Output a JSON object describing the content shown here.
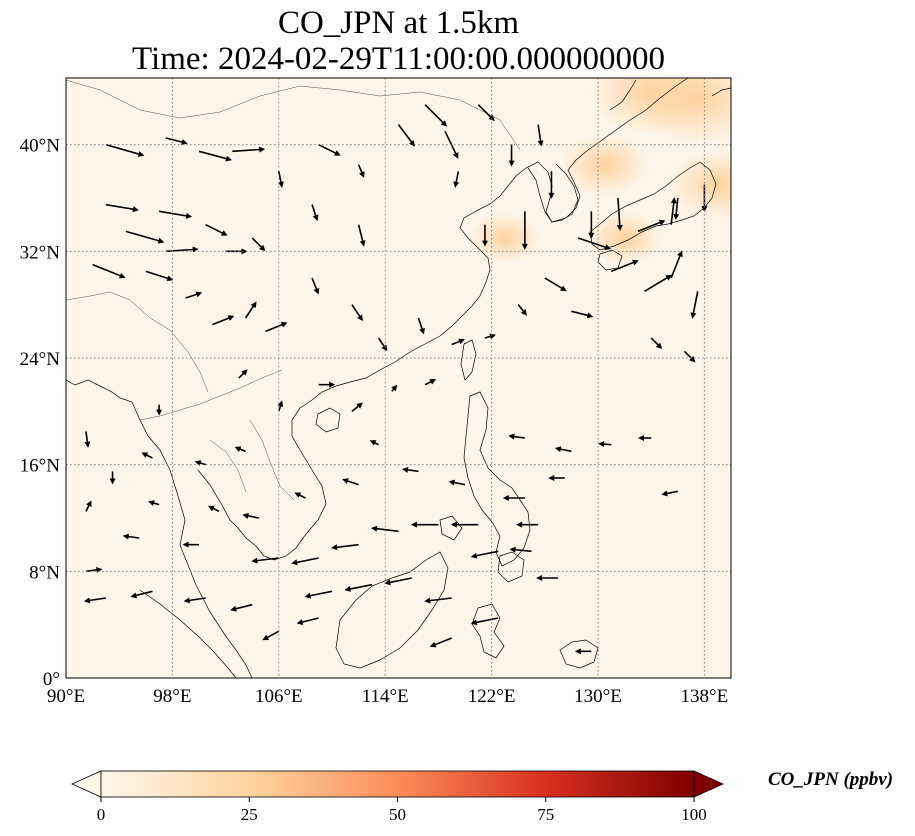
{
  "title": {
    "line1": "CO_JPN at 1.5km",
    "line2": "Time: 2024-02-29T11:00:00.000000000"
  },
  "map": {
    "lon_range": [
      90,
      140
    ],
    "lat_range": [
      0,
      45
    ],
    "lon_ticks": [
      90,
      98,
      106,
      114,
      122,
      130,
      138
    ],
    "lon_tick_labels": [
      "90°E",
      "98°E",
      "106°E",
      "114°E",
      "122°E",
      "130°E",
      "138°E"
    ],
    "lat_ticks": [
      0,
      8,
      16,
      24,
      32,
      40
    ],
    "lat_tick_labels": [
      "0°",
      "8°N",
      "16°N",
      "24°N",
      "32°N",
      "40°N"
    ],
    "gridlines": "dotted",
    "background_color": "#fff5e9",
    "coastline_color": "#000000"
  },
  "colorbar": {
    "label": "CO_JPN (ppbv)",
    "min": 0,
    "max": 100,
    "ticks": [
      0,
      25,
      50,
      75,
      100
    ],
    "tick_labels": [
      "0",
      "25",
      "50",
      "75",
      "100"
    ],
    "extend": "both",
    "colormap": "OrRd",
    "colors": [
      "#fff7ec",
      "#fdd49e",
      "#fc8d59",
      "#d7301f",
      "#7f0000"
    ]
  },
  "concentration_highlights": [
    {
      "lon": 130.5,
      "lat": 38.5,
      "value": 12
    },
    {
      "lon": 139.0,
      "lat": 37.0,
      "value": 14
    },
    {
      "lon": 134.0,
      "lat": 44.0,
      "value": 20
    },
    {
      "lon": 137.5,
      "lat": 43.5,
      "value": 22
    },
    {
      "lon": 123.0,
      "lat": 33.0,
      "value": 8
    },
    {
      "lon": 132.0,
      "lat": 33.0,
      "value": 9
    }
  ],
  "wind_vectors": [
    {
      "lon": 93.0,
      "lat": 40.0,
      "u": 3.5,
      "v": -1.0
    },
    {
      "lon": 97.5,
      "lat": 40.5,
      "u": 2.0,
      "v": -0.5
    },
    {
      "lon": 100.0,
      "lat": 39.5,
      "u": 3.0,
      "v": -0.8
    },
    {
      "lon": 102.5,
      "lat": 39.5,
      "u": 3.0,
      "v": 0.2
    },
    {
      "lon": 106.0,
      "lat": 38.0,
      "u": 0.3,
      "v": -1.5
    },
    {
      "lon": 109.0,
      "lat": 40.0,
      "u": 2.0,
      "v": -1.0
    },
    {
      "lon": 112.0,
      "lat": 38.5,
      "u": 0.5,
      "v": -1.2
    },
    {
      "lon": 115.0,
      "lat": 41.5,
      "u": 1.5,
      "v": -2.0
    },
    {
      "lon": 117.0,
      "lat": 43.0,
      "u": 2.0,
      "v": -2.0
    },
    {
      "lon": 118.5,
      "lat": 41.0,
      "u": 1.2,
      "v": -2.5
    },
    {
      "lon": 121.0,
      "lat": 43.0,
      "u": 1.5,
      "v": -1.5
    },
    {
      "lon": 93.0,
      "lat": 35.5,
      "u": 3.0,
      "v": -0.5
    },
    {
      "lon": 97.0,
      "lat": 35.0,
      "u": 3.0,
      "v": -0.5
    },
    {
      "lon": 100.5,
      "lat": 34.0,
      "u": 2.0,
      "v": -1.0
    },
    {
      "lon": 94.5,
      "lat": 33.5,
      "u": 3.5,
      "v": -1.0
    },
    {
      "lon": 97.5,
      "lat": 32.0,
      "u": 3.0,
      "v": 0.2
    },
    {
      "lon": 102.0,
      "lat": 32.0,
      "u": 2.0,
      "v": 0.0
    },
    {
      "lon": 104.0,
      "lat": 33.0,
      "u": 1.2,
      "v": -1.2
    },
    {
      "lon": 108.5,
      "lat": 35.5,
      "u": 0.5,
      "v": -1.5
    },
    {
      "lon": 112.0,
      "lat": 34.0,
      "u": 0.5,
      "v": -2.0
    },
    {
      "lon": 92.0,
      "lat": 31.0,
      "u": 3.0,
      "v": -1.2
    },
    {
      "lon": 96.0,
      "lat": 30.5,
      "u": 2.5,
      "v": -0.8
    },
    {
      "lon": 99.0,
      "lat": 28.5,
      "u": 1.5,
      "v": 0.5
    },
    {
      "lon": 101.0,
      "lat": 26.5,
      "u": 2.0,
      "v": 0.8
    },
    {
      "lon": 103.5,
      "lat": 27.0,
      "u": 1.0,
      "v": 1.5
    },
    {
      "lon": 105.0,
      "lat": 26.0,
      "u": 2.0,
      "v": 0.8
    },
    {
      "lon": 108.5,
      "lat": 30.0,
      "u": 0.6,
      "v": -1.5
    },
    {
      "lon": 111.5,
      "lat": 28.0,
      "u": 1.0,
      "v": -1.5
    },
    {
      "lon": 113.5,
      "lat": 25.5,
      "u": 0.8,
      "v": -1.2
    },
    {
      "lon": 116.5,
      "lat": 27.0,
      "u": 0.5,
      "v": -1.5
    },
    {
      "lon": 119.0,
      "lat": 25.0,
      "u": 1.2,
      "v": 0.5
    },
    {
      "lon": 121.5,
      "lat": 25.5,
      "u": 1.0,
      "v": 0.3
    },
    {
      "lon": 124.0,
      "lat": 28.0,
      "u": 0.8,
      "v": -1.0
    },
    {
      "lon": 126.0,
      "lat": 30.0,
      "u": 2.0,
      "v": -1.2
    },
    {
      "lon": 128.0,
      "lat": 27.5,
      "u": 2.0,
      "v": -0.5
    },
    {
      "lon": 131.0,
      "lat": 30.5,
      "u": 2.5,
      "v": 1.0
    },
    {
      "lon": 133.5,
      "lat": 29.0,
      "u": 2.5,
      "v": 1.5
    },
    {
      "lon": 135.5,
      "lat": 30.0,
      "u": 1.0,
      "v": 2.5
    },
    {
      "lon": 137.5,
      "lat": 29.0,
      "u": -0.5,
      "v": -2.5
    },
    {
      "lon": 128.5,
      "lat": 33.0,
      "u": 3.0,
      "v": -1.0
    },
    {
      "lon": 129.5,
      "lat": 35.0,
      "u": 0.0,
      "v": -2.5
    },
    {
      "lon": 131.5,
      "lat": 36.0,
      "u": 0.2,
      "v": -3.0
    },
    {
      "lon": 133.0,
      "lat": 33.5,
      "u": 2.5,
      "v": 1.0
    },
    {
      "lon": 135.5,
      "lat": 34.0,
      "u": 0.3,
      "v": 2.5
    },
    {
      "lon": 136.0,
      "lat": 36.0,
      "u": -0.2,
      "v": -2.0
    },
    {
      "lon": 138.0,
      "lat": 37.0,
      "u": 0.0,
      "v": -2.5
    },
    {
      "lon": 126.5,
      "lat": 38.0,
      "u": 0.0,
      "v": -2.5
    },
    {
      "lon": 124.5,
      "lat": 35.0,
      "u": 0.0,
      "v": -3.5
    },
    {
      "lon": 121.5,
      "lat": 34.0,
      "u": 0.0,
      "v": -2.0
    },
    {
      "lon": 119.5,
      "lat": 38.0,
      "u": -0.3,
      "v": -1.5
    },
    {
      "lon": 123.5,
      "lat": 40.0,
      "u": 0.0,
      "v": -2.0
    },
    {
      "lon": 125.5,
      "lat": 41.5,
      "u": 0.3,
      "v": -2.0
    },
    {
      "lon": 134.0,
      "lat": 25.5,
      "u": 1.0,
      "v": -1.0
    },
    {
      "lon": 136.5,
      "lat": 24.5,
      "u": 1.0,
      "v": -1.0
    },
    {
      "lon": 103.0,
      "lat": 22.5,
      "u": 0.8,
      "v": 0.8
    },
    {
      "lon": 106.0,
      "lat": 20.0,
      "u": 0.3,
      "v": 1.0
    },
    {
      "lon": 109.0,
      "lat": 22.0,
      "u": 1.5,
      "v": 0.0
    },
    {
      "lon": 111.5,
      "lat": 20.0,
      "u": 1.0,
      "v": 0.8
    },
    {
      "lon": 114.5,
      "lat": 21.5,
      "u": 0.5,
      "v": 0.6
    },
    {
      "lon": 117.0,
      "lat": 22.0,
      "u": 1.0,
      "v": 0.5
    },
    {
      "lon": 124.5,
      "lat": 18.0,
      "u": -1.5,
      "v": 0.2
    },
    {
      "lon": 128.0,
      "lat": 17.0,
      "u": -1.5,
      "v": 0.3
    },
    {
      "lon": 131.0,
      "lat": 17.5,
      "u": -1.2,
      "v": 0.1
    },
    {
      "lon": 134.0,
      "lat": 18.0,
      "u": -1.2,
      "v": 0.0
    },
    {
      "lon": 136.0,
      "lat": 14.0,
      "u": -1.5,
      "v": -0.3
    },
    {
      "lon": 127.5,
      "lat": 15.0,
      "u": -1.5,
      "v": 0.0
    },
    {
      "lon": 124.5,
      "lat": 13.5,
      "u": -2.0,
      "v": 0.0
    },
    {
      "lon": 121.0,
      "lat": 11.5,
      "u": -2.5,
      "v": 0.0
    },
    {
      "lon": 125.5,
      "lat": 11.5,
      "u": -2.0,
      "v": 0.0
    },
    {
      "lon": 118.0,
      "lat": 11.5,
      "u": -2.5,
      "v": 0.0
    },
    {
      "lon": 115.0,
      "lat": 11.0,
      "u": -2.5,
      "v": 0.3
    },
    {
      "lon": 112.0,
      "lat": 10.0,
      "u": -2.5,
      "v": -0.3
    },
    {
      "lon": 109.0,
      "lat": 9.0,
      "u": -2.5,
      "v": -0.5
    },
    {
      "lon": 106.0,
      "lat": 9.0,
      "u": -2.5,
      "v": -0.3
    },
    {
      "lon": 122.5,
      "lat": 9.5,
      "u": -2.5,
      "v": -0.5
    },
    {
      "lon": 125.0,
      "lat": 9.5,
      "u": -2.0,
      "v": 0.2
    },
    {
      "lon": 127.0,
      "lat": 7.5,
      "u": -2.0,
      "v": 0.0
    },
    {
      "lon": 116.0,
      "lat": 7.5,
      "u": -2.5,
      "v": -0.5
    },
    {
      "lon": 113.0,
      "lat": 7.0,
      "u": -2.5,
      "v": -0.5
    },
    {
      "lon": 110.0,
      "lat": 6.5,
      "u": -2.5,
      "v": -0.5
    },
    {
      "lon": 119.0,
      "lat": 6.0,
      "u": -2.5,
      "v": -0.3
    },
    {
      "lon": 122.5,
      "lat": 4.5,
      "u": -2.5,
      "v": -0.5
    },
    {
      "lon": 119.0,
      "lat": 3.0,
      "u": -2.0,
      "v": -0.8
    },
    {
      "lon": 104.0,
      "lat": 5.5,
      "u": -2.0,
      "v": -0.5
    },
    {
      "lon": 100.5,
      "lat": 6.0,
      "u": -2.0,
      "v": -0.3
    },
    {
      "lon": 96.5,
      "lat": 6.5,
      "u": -2.0,
      "v": -0.5
    },
    {
      "lon": 93.0,
      "lat": 6.0,
      "u": -2.0,
      "v": -0.3
    },
    {
      "lon": 91.5,
      "lat": 8.0,
      "u": 1.5,
      "v": 0.2
    },
    {
      "lon": 100.0,
      "lat": 10.0,
      "u": -1.5,
      "v": 0.0
    },
    {
      "lon": 95.5,
      "lat": 10.5,
      "u": -1.5,
      "v": 0.2
    },
    {
      "lon": 91.5,
      "lat": 12.5,
      "u": 0.5,
      "v": 1.0
    },
    {
      "lon": 109.0,
      "lat": 4.5,
      "u": -2.0,
      "v": -0.5
    },
    {
      "lon": 106.0,
      "lat": 3.5,
      "u": -1.5,
      "v": -0.8
    },
    {
      "lon": 129.5,
      "lat": 2.0,
      "u": -1.5,
      "v": 0.0
    },
    {
      "lon": 116.5,
      "lat": 15.5,
      "u": -1.5,
      "v": 0.2
    },
    {
      "lon": 112.0,
      "lat": 14.5,
      "u": -1.5,
      "v": 0.5
    },
    {
      "lon": 108.0,
      "lat": 13.5,
      "u": -1.0,
      "v": 0.5
    },
    {
      "lon": 120.0,
      "lat": 14.5,
      "u": -1.5,
      "v": 0.3
    },
    {
      "lon": 97.0,
      "lat": 20.5,
      "u": 0.0,
      "v": -1.0
    },
    {
      "lon": 91.5,
      "lat": 18.5,
      "u": 0.2,
      "v": -1.5
    },
    {
      "lon": 93.5,
      "lat": 15.5,
      "u": 0.0,
      "v": -1.2
    },
    {
      "lon": 96.5,
      "lat": 16.5,
      "u": -1.0,
      "v": 0.5
    },
    {
      "lon": 100.5,
      "lat": 16.0,
      "u": -1.0,
      "v": 0.3
    },
    {
      "lon": 103.5,
      "lat": 17.0,
      "u": -1.0,
      "v": 0.4
    },
    {
      "lon": 104.5,
      "lat": 12.0,
      "u": -1.5,
      "v": 0.3
    },
    {
      "lon": 101.5,
      "lat": 12.5,
      "u": -1.0,
      "v": 0.5
    },
    {
      "lon": 97.0,
      "lat": 13.0,
      "u": -1.0,
      "v": 0.3
    },
    {
      "lon": 113.5,
      "lat": 17.5,
      "u": -0.8,
      "v": 0.4
    }
  ]
}
